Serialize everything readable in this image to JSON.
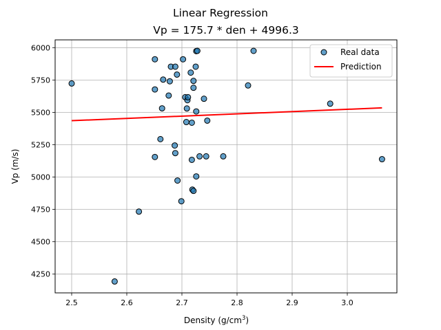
{
  "chart_data": {
    "type": "scatter",
    "title": "Linear Regression",
    "subtitle": "Vp = 175.7 * den + 4996.3",
    "xlabel_main": "Density (g/cm",
    "xlabel_sup": "3",
    "xlabel_end": ")",
    "ylabel": "Vp (m/s)",
    "xlim": [
      2.47,
      3.09
    ],
    "ylim": [
      4105,
      6060
    ],
    "xticks": [
      2.5,
      2.6,
      2.7,
      2.8,
      2.9,
      3.0
    ],
    "xtick_labels": [
      "2.5",
      "2.6",
      "2.7",
      "2.8",
      "2.9",
      "3.0"
    ],
    "yticks": [
      4250,
      4500,
      4750,
      5000,
      5250,
      5500,
      5750,
      6000
    ],
    "ytick_labels": [
      "4250",
      "4500",
      "4750",
      "5000",
      "5250",
      "5500",
      "5750",
      "6000"
    ],
    "grid": true,
    "legend_position": "top-right",
    "colors": {
      "scatter_fill": "#1f77b4",
      "scatter_edge": "#000000",
      "line": "#ff0000",
      "grid": "#b0b0b0"
    },
    "series": [
      {
        "name": "Real data",
        "kind": "scatter",
        "points": [
          [
            2.5,
            5723
          ],
          [
            2.578,
            4193
          ],
          [
            2.622,
            4733
          ],
          [
            2.651,
            5910
          ],
          [
            2.651,
            5677
          ],
          [
            2.651,
            5155
          ],
          [
            2.661,
            5293
          ],
          [
            2.664,
            5531
          ],
          [
            2.666,
            5753
          ],
          [
            2.676,
            5630
          ],
          [
            2.678,
            5740
          ],
          [
            2.68,
            5853
          ],
          [
            2.687,
            5244
          ],
          [
            2.688,
            5853
          ],
          [
            2.688,
            5185
          ],
          [
            2.691,
            5792
          ],
          [
            2.692,
            4973
          ],
          [
            2.699,
            4813
          ],
          [
            2.702,
            5910
          ],
          [
            2.706,
            5617
          ],
          [
            2.708,
            5425
          ],
          [
            2.709,
            5530
          ],
          [
            2.71,
            5594
          ],
          [
            2.711,
            5617
          ],
          [
            2.716,
            5807
          ],
          [
            2.718,
            5420
          ],
          [
            2.718,
            5133
          ],
          [
            2.719,
            4903
          ],
          [
            2.721,
            4893
          ],
          [
            2.721,
            5690
          ],
          [
            2.721,
            5743
          ],
          [
            2.725,
            5853
          ],
          [
            2.726,
            5973
          ],
          [
            2.726,
            5005
          ],
          [
            2.726,
            5507
          ],
          [
            2.728,
            5975
          ],
          [
            2.732,
            5160
          ],
          [
            2.74,
            5605
          ],
          [
            2.744,
            5160
          ],
          [
            2.746,
            5436
          ],
          [
            2.775,
            5160
          ],
          [
            2.82,
            5708
          ],
          [
            2.83,
            5975
          ],
          [
            2.969,
            5567
          ],
          [
            3.063,
            5138
          ]
        ]
      },
      {
        "name": "Prediction",
        "kind": "line",
        "slope": 175.7,
        "intercept": 4996.3,
        "x_range": [
          2.5,
          3.063
        ]
      }
    ]
  }
}
